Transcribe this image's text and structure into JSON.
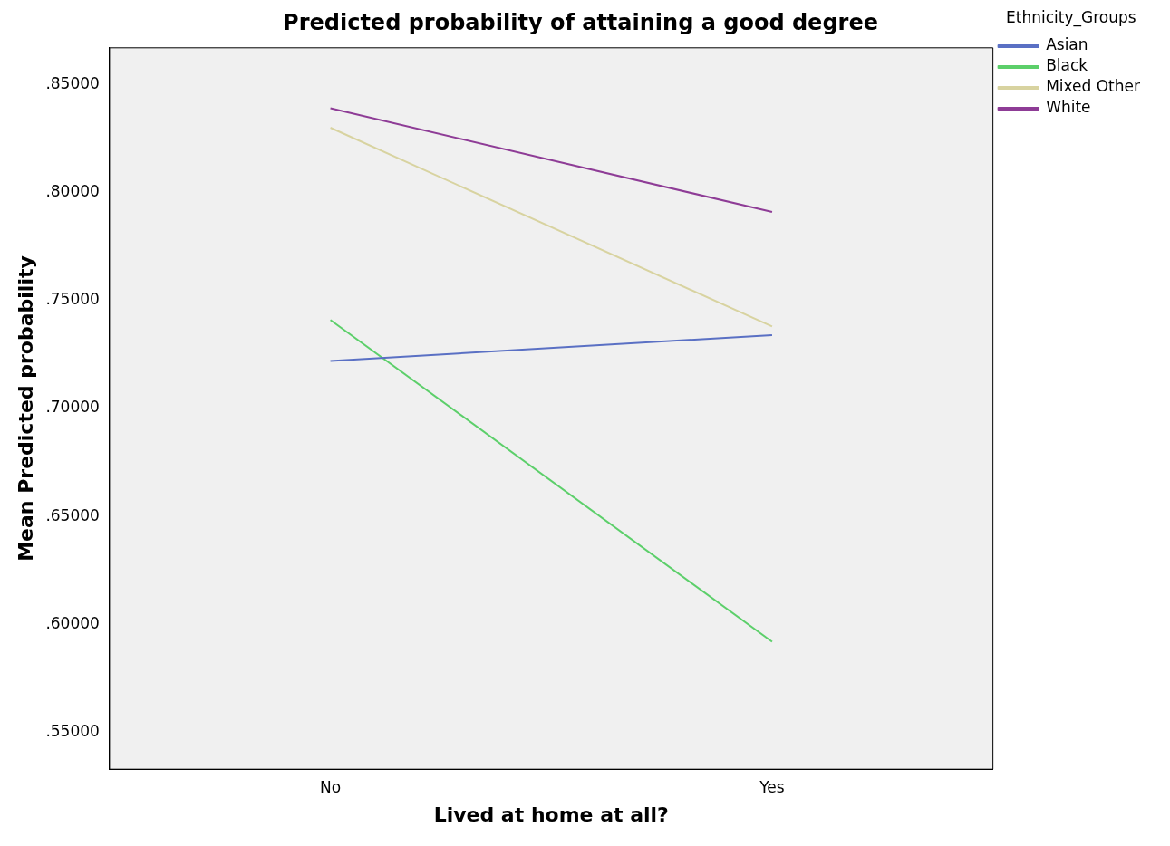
{
  "chart_data": {
    "type": "line",
    "title": "Predicted probability of attaining a good degree",
    "xlabel": "Lived at home at all?",
    "ylabel": "Mean Predicted probability",
    "legend_title": "Ethnicity_Groups",
    "legend": "top right",
    "grid": false,
    "marker": "none",
    "line_style": "solid",
    "categories": [
      "No",
      "Yes"
    ],
    "ylim": [
      0.533,
      0.867
    ],
    "yticks": [
      {
        "value": 0.55,
        "label": ".55000"
      },
      {
        "value": 0.6,
        "label": ".60000"
      },
      {
        "value": 0.65,
        "label": ".65000"
      },
      {
        "value": 0.7,
        "label": ".70000"
      },
      {
        "value": 0.75,
        "label": ".75000"
      },
      {
        "value": 0.8,
        "label": ".80000"
      },
      {
        "value": 0.85,
        "label": ".85000"
      }
    ],
    "series": [
      {
        "name": "Asian",
        "color": "#5a70c4",
        "values": [
          0.722,
          0.734
        ]
      },
      {
        "name": "Black",
        "color": "#5ccf6a",
        "values": [
          0.741,
          0.592
        ]
      },
      {
        "name": "Mixed Other",
        "color": "#d8d3a0",
        "values": [
          0.83,
          0.738
        ]
      },
      {
        "name": "White",
        "color": "#8e3c96",
        "values": [
          0.839,
          0.791
        ]
      }
    ]
  }
}
